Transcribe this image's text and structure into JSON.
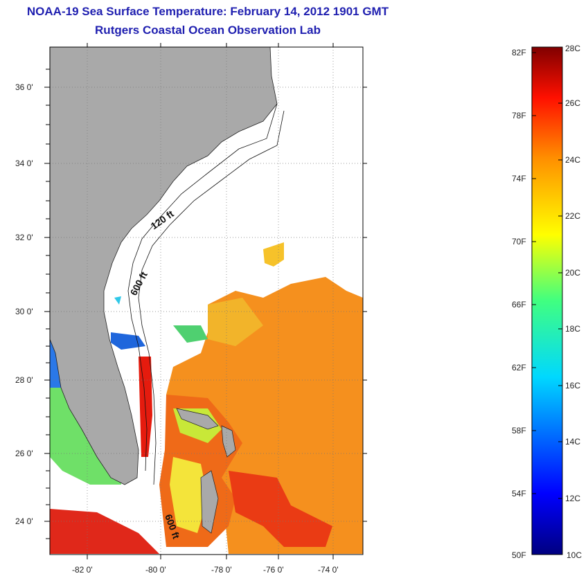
{
  "title": "NOAA-19 Sea Surface Temperature:  February 14, 2012 1901 GMT",
  "subtitle": "Rutgers Coastal Ocean Observation Lab",
  "map": {
    "lat_ticks": [
      "36 0'",
      "34 0'",
      "32 0'",
      "30 0'",
      "28 0'",
      "26 0'",
      "24 0'"
    ],
    "lon_ticks": [
      "-82 0'",
      "-80 0'",
      "-78 0'",
      "-76 0'",
      "-74 0'"
    ],
    "contour_labels": [
      "120 ft",
      "600 ft",
      "600 ft"
    ],
    "colors": {
      "land": "#a9a9a9",
      "ocean_bg": "#ffffff",
      "grid": "#777777"
    }
  },
  "colorbar": {
    "f_labels": [
      "82F",
      "78F",
      "74F",
      "70F",
      "66F",
      "62F",
      "58F",
      "54F",
      "50F"
    ],
    "c_labels": [
      "28C",
      "26C",
      "24C",
      "22C",
      "20C",
      "18C",
      "16C",
      "14C",
      "12C",
      "10C"
    ],
    "range_c": [
      10,
      28
    ],
    "colormap": "jet"
  }
}
